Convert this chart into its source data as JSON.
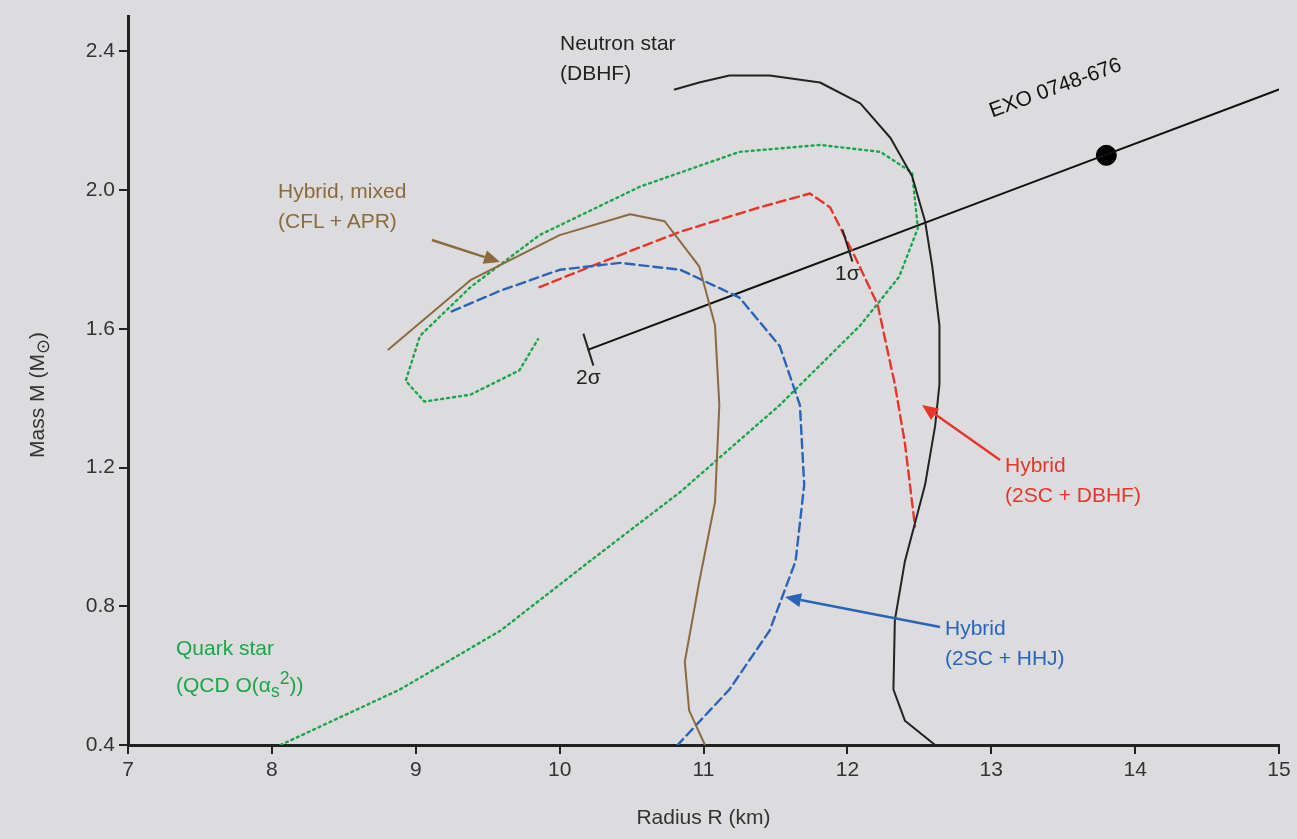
{
  "chart_data": {
    "type": "line",
    "xlabel": "Radius R (km)",
    "ylabel": "Mass M (M$_{⊙}$)",
    "xlim": [
      7,
      15
    ],
    "ylim": [
      0.4,
      2.5
    ],
    "xticks": [
      7,
      8,
      9,
      10,
      11,
      12,
      13,
      14,
      15
    ],
    "yticks": [
      0.4,
      0.8,
      1.2,
      1.6,
      {
        "value": 2,
        "label": "2.0"
      },
      2.4
    ],
    "grid": false,
    "legend": false,
    "series": [
      {
        "name": "Neutron star (DBHF)",
        "color": "#222222",
        "line_style": "solid",
        "x": [
          10.8,
          10.97,
          11.18,
          11.46,
          11.81,
          12.09,
          12.3,
          12.45,
          12.54,
          12.59,
          12.64,
          12.64,
          12.61,
          12.54,
          12.4,
          12.33,
          12.32,
          12.4,
          12.61
        ],
        "values": [
          2.29,
          2.31,
          2.33,
          2.33,
          2.31,
          2.25,
          2.15,
          2.04,
          1.91,
          1.78,
          1.61,
          1.44,
          1.32,
          1.15,
          0.93,
          0.76,
          0.56,
          0.47,
          0.4
        ]
      },
      {
        "name": "Hybrid, mixed (CFL + APR)",
        "color": "#8b6a3e",
        "line_style": "solid",
        "x": [
          8.81,
          9.38,
          10.0,
          10.49,
          10.73,
          10.97,
          11.08,
          11.11,
          11.08,
          10.97,
          10.87,
          10.9,
          11.01
        ],
        "values": [
          1.54,
          1.74,
          1.87,
          1.93,
          1.91,
          1.78,
          1.61,
          1.38,
          1.1,
          0.87,
          0.64,
          0.5,
          0.4
        ]
      },
      {
        "name": "Hybrid (2SC + HHJ)",
        "color": "#2a64b8",
        "line_style": "dashed",
        "x": [
          9.25,
          9.59,
          10.0,
          10.42,
          10.84,
          11.25,
          11.53,
          11.67,
          11.7,
          11.64,
          11.46,
          11.18,
          10.82
        ],
        "values": [
          1.65,
          1.71,
          1.77,
          1.79,
          1.77,
          1.69,
          1.55,
          1.38,
          1.15,
          0.93,
          0.73,
          0.56,
          0.4
        ]
      },
      {
        "name": "Hybrid (2SC + DBHF)",
        "color": "#e8352a",
        "line_style": "dashed",
        "x": [
          9.86,
          10.28,
          10.84,
          11.39,
          11.74,
          11.88,
          12.05,
          12.21,
          12.33,
          12.4,
          12.47
        ],
        "values": [
          1.72,
          1.79,
          1.88,
          1.95,
          1.99,
          1.95,
          1.81,
          1.67,
          1.44,
          1.27,
          1.03
        ]
      },
      {
        "name": "Quark star (QCD O(α$_{s}$$^{2}$))",
        "color": "#1aa64a",
        "line_style": "dotted",
        "x": [
          8.06,
          8.89,
          9.59,
          10.21,
          10.84,
          11.53,
          12.09,
          12.36,
          12.49,
          12.45,
          12.23,
          11.81,
          11.25,
          10.56,
          9.86,
          9.38,
          9.03,
          8.93,
          9.06,
          9.38,
          9.72,
          9.85
        ],
        "values": [
          0.4,
          0.56,
          0.73,
          0.93,
          1.13,
          1.38,
          1.61,
          1.75,
          1.89,
          2.05,
          2.11,
          2.13,
          2.11,
          2.01,
          1.87,
          1.72,
          1.58,
          1.45,
          1.39,
          1.41,
          1.48,
          1.57
        ]
      },
      {
        "name": "EXO 0748-676",
        "color": "#111111",
        "line_style": "solid",
        "x": [
          10.2,
          15.0
        ],
        "values": [
          1.54,
          2.29
        ]
      },
      {
        "type": "scatter",
        "color": "#000000",
        "marker": "circle",
        "x": [
          13.8
        ],
        "values": [
          2.1
        ]
      }
    ],
    "annotations": [
      {
        "text": "1σ",
        "x": 12.0,
        "y": 1.84
      },
      {
        "text": "2σ",
        "x": 10.2,
        "y": 1.54
      }
    ]
  }
}
